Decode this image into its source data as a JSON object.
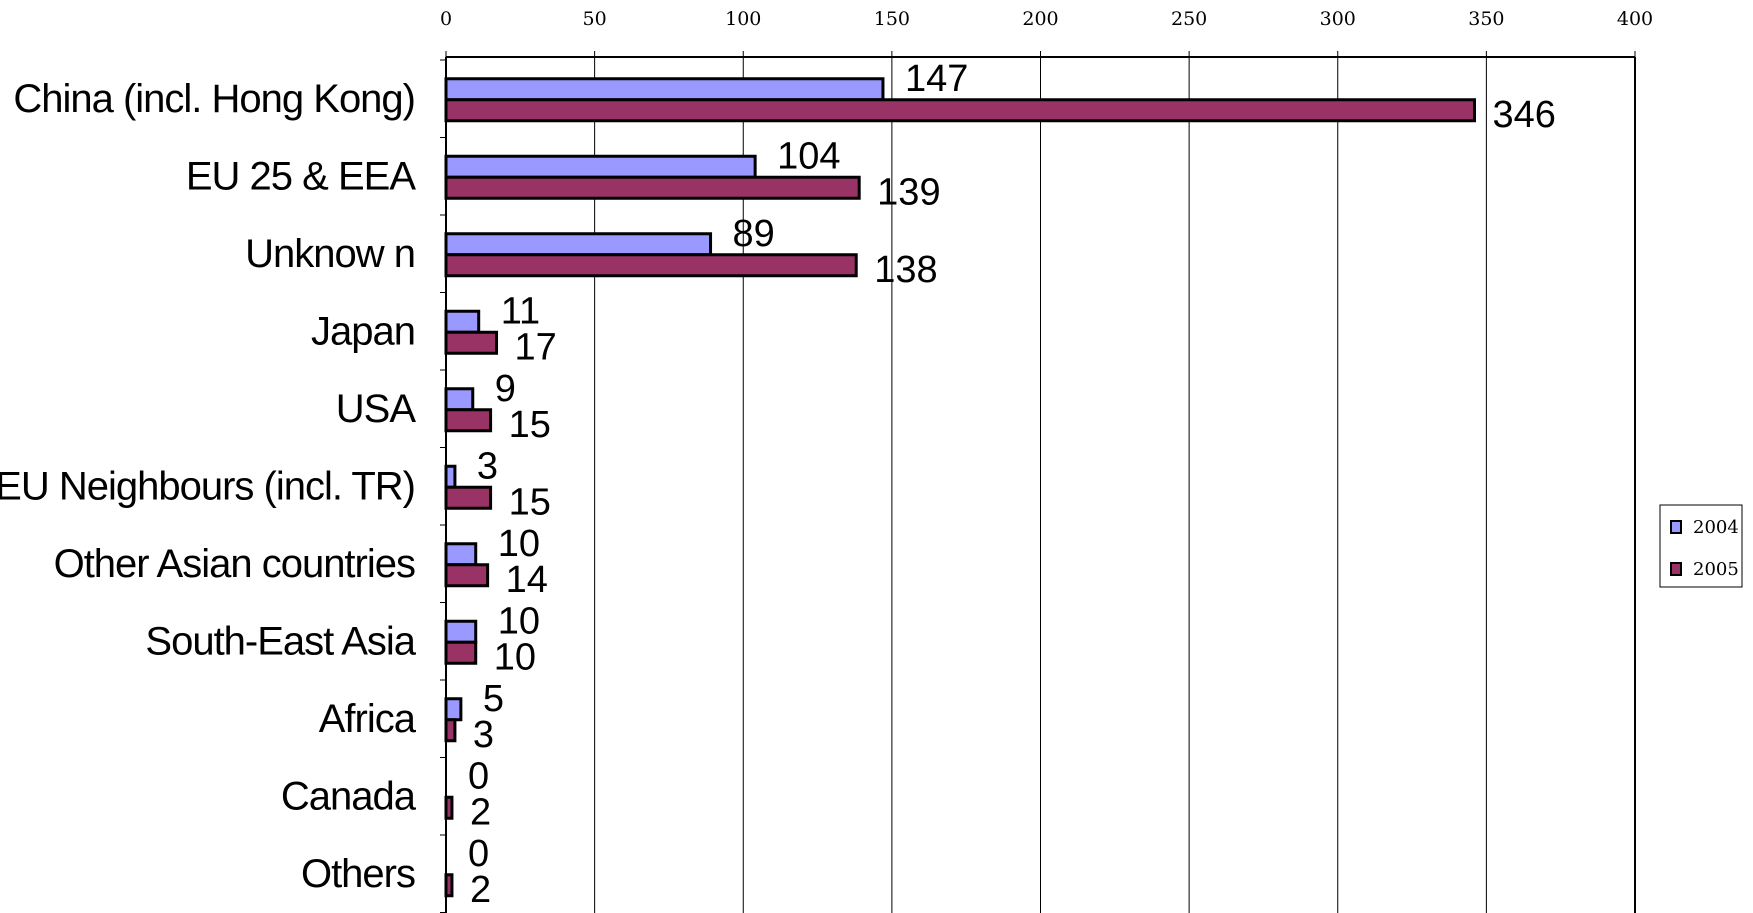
{
  "chart_data": {
    "type": "bar",
    "orientation": "horizontal",
    "categories": [
      "China (incl. Hong Kong)",
      "EU 25 & EEA",
      "Unknow n",
      "Japan",
      "USA",
      "EU Neighbours (incl. TR)",
      "Other Asian countries",
      "South-East Asia",
      "Africa",
      "Canada",
      "Others"
    ],
    "series": [
      {
        "name": "2004",
        "color": "#9999ff",
        "values": [
          147,
          104,
          89,
          11,
          9,
          3,
          10,
          10,
          5,
          0,
          0
        ]
      },
      {
        "name": "2005",
        "color": "#993366",
        "values": [
          346,
          139,
          138,
          17,
          15,
          15,
          14,
          10,
          3,
          2,
          2
        ]
      }
    ],
    "xlim": [
      0,
      400
    ],
    "xticks": [
      "0",
      "50",
      "100",
      "150",
      "200",
      "250",
      "300",
      "350",
      "400"
    ],
    "x_axis_position": "top",
    "grid": true,
    "legend_position": "right"
  }
}
